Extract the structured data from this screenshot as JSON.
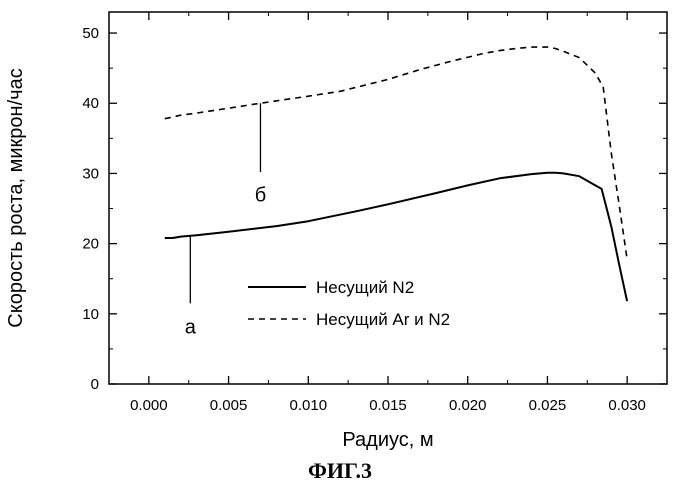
{
  "chart_data": {
    "type": "line",
    "xlabel": "Радиус, м",
    "ylabel": "Скорость роста, микрон/час",
    "xlim": [
      -0.0025,
      0.0325
    ],
    "ylim": [
      0,
      53
    ],
    "x_ticks": [
      "0.000",
      "0.005",
      "0.010",
      "0.015",
      "0.020",
      "0.025",
      "0.030"
    ],
    "y_ticks": [
      "0",
      "10",
      "20",
      "30",
      "40",
      "50"
    ],
    "grid": false,
    "legend_position": "lower-right",
    "series": [
      {
        "name": "Несущий N2",
        "style": "solid",
        "color": "#000000",
        "x": [
          0.001,
          0.0015,
          0.002,
          0.003,
          0.005,
          0.008,
          0.01,
          0.013,
          0.015,
          0.018,
          0.02,
          0.022,
          0.024,
          0.025,
          0.0255,
          0.026,
          0.027,
          0.028,
          0.0284,
          0.029,
          0.0295,
          0.03
        ],
        "values": [
          20.8,
          20.8,
          21.0,
          21.2,
          21.7,
          22.5,
          23.2,
          24.6,
          25.6,
          27.2,
          28.3,
          29.3,
          29.9,
          30.1,
          30.1,
          30.0,
          29.6,
          28.3,
          27.8,
          22.5,
          17.0,
          11.8
        ]
      },
      {
        "name": "Несущий Ar и N2",
        "style": "dashed",
        "color": "#000000",
        "x": [
          0.001,
          0.002,
          0.003,
          0.005,
          0.007,
          0.01,
          0.012,
          0.015,
          0.017,
          0.019,
          0.021,
          0.022,
          0.023,
          0.024,
          0.025,
          0.0255,
          0.026,
          0.027,
          0.028,
          0.0285,
          0.029,
          0.0295,
          0.03
        ],
        "values": [
          37.8,
          38.3,
          38.6,
          39.3,
          40.0,
          41.0,
          41.7,
          43.4,
          44.8,
          46.0,
          47.1,
          47.5,
          47.8,
          48.0,
          48.0,
          47.8,
          47.4,
          46.5,
          44.3,
          42.3,
          33.0,
          25.5,
          17.8
        ]
      }
    ],
    "annotations": [
      {
        "label": "а",
        "x": 0.0026,
        "y_from": 21.2,
        "y_to": 11.5,
        "label_y": 7.2
      },
      {
        "label": "б",
        "x": 0.007,
        "y_from": 40.0,
        "y_to": 30.2,
        "label_y": 26.0
      }
    ]
  },
  "figure": {
    "caption": "ФИГ.3"
  }
}
